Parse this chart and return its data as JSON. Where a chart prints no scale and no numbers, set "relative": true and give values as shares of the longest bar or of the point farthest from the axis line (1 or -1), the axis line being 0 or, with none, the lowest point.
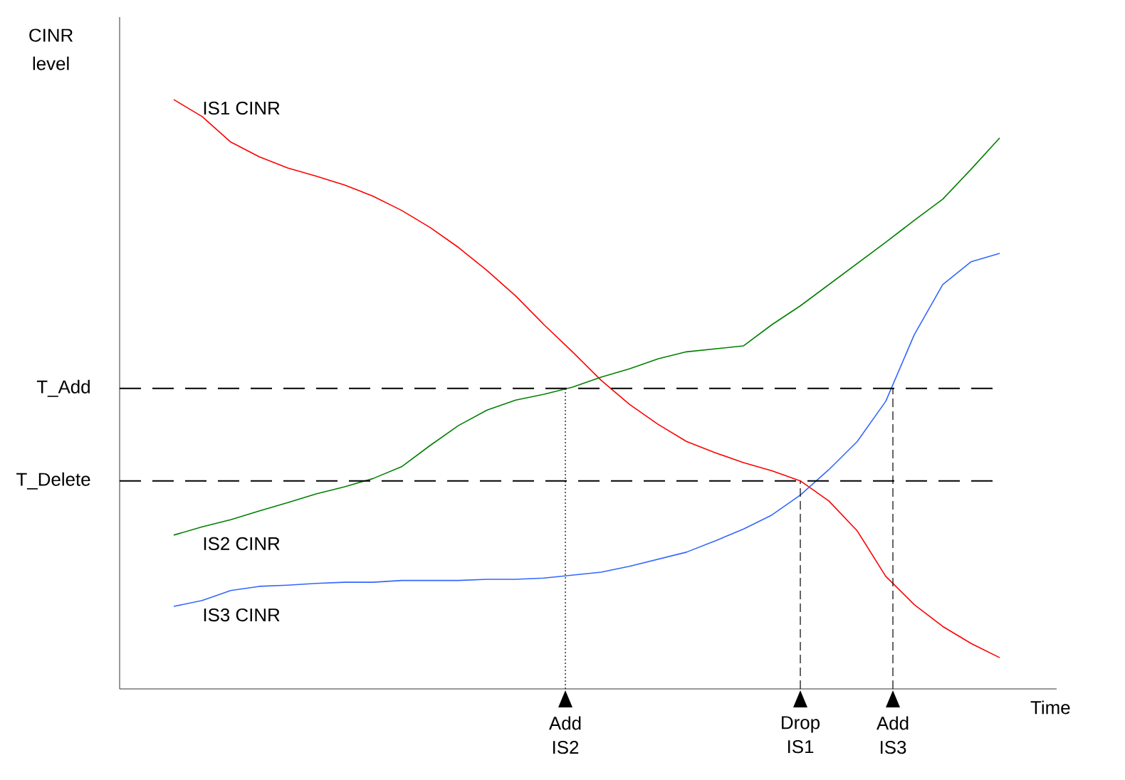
{
  "chart_data": {
    "type": "line",
    "relative": true,
    "xlabel": "Time",
    "ylabel": "CINR level",
    "annotations": [
      "Add IS2",
      "Drop IS1",
      "Add IS3"
    ],
    "categories": [
      null,
      null,
      null,
      null,
      null,
      null,
      null,
      null,
      null,
      null,
      null,
      null,
      null,
      null,
      null,
      null,
      null,
      null,
      null,
      null,
      null,
      null,
      null,
      null,
      null,
      null,
      null,
      null,
      null,
      null
    ],
    "series": [
      {
        "name": "IS1 CINR",
        "color": "#ff0000",
        "values": [
          1.0,
          0.971,
          0.928,
          0.903,
          0.884,
          0.87,
          0.855,
          0.836,
          0.812,
          0.783,
          0.749,
          0.71,
          0.667,
          0.618,
          0.572,
          0.524,
          0.483,
          0.449,
          0.42,
          0.401,
          0.384,
          0.37,
          0.353,
          0.319,
          0.268,
          0.191,
          0.143,
          0.106,
          0.077,
          0.053
        ]
      },
      {
        "name": "IS2 CINR",
        "color": "#008000",
        "values": [
          0.261,
          0.275,
          0.287,
          0.302,
          0.316,
          0.331,
          0.343,
          0.357,
          0.377,
          0.413,
          0.447,
          0.473,
          0.49,
          0.5,
          0.512,
          0.529,
          0.543,
          0.56,
          0.572,
          0.577,
          0.582,
          0.618,
          0.65,
          0.686,
          0.722,
          0.758,
          0.795,
          0.831,
          0.882,
          0.935
        ]
      },
      {
        "name": "IS3 CINR",
        "color": "#3366ff",
        "values": [
          0.14,
          0.15,
          0.167,
          0.174,
          0.176,
          0.179,
          0.181,
          0.181,
          0.184,
          0.184,
          0.184,
          0.186,
          0.186,
          0.188,
          0.193,
          0.198,
          0.208,
          0.22,
          0.232,
          0.251,
          0.271,
          0.295,
          0.329,
          0.372,
          0.42,
          0.488,
          0.601,
          0.686,
          0.725,
          0.739
        ]
      }
    ],
    "ref_lines": [
      {
        "axis": "y",
        "value": 0.51,
        "label": "T_Add",
        "color": "#000000",
        "line_style": "dashed"
      },
      {
        "axis": "y",
        "value": 0.353,
        "label": "T_Delete",
        "color": "#000000",
        "line_style": "dashed"
      }
    ]
  }
}
